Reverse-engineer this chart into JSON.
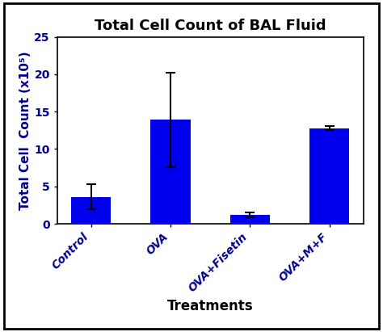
{
  "title": "Total Cell Count of BAL Fluid",
  "xlabel": "Treatments",
  "ylabel": "Total Cell  Count (x10⁵)",
  "categories": [
    "Control",
    "OVA",
    "OVA+Fisetin",
    "OVA+M+F"
  ],
  "values": [
    3.6,
    13.9,
    1.2,
    12.8
  ],
  "errors": [
    1.7,
    6.3,
    0.35,
    0.25
  ],
  "bar_color": "#0000EE",
  "tick_label_color": "#00008B",
  "axis_label_color": "#000000",
  "ytick_label_color": "#00008B",
  "title_color": "#000000",
  "background_color": "#ffffff",
  "ylim": [
    0,
    25
  ],
  "yticks": [
    0,
    5,
    10,
    15,
    20,
    25
  ],
  "bar_width": 0.5,
  "title_fontsize": 13,
  "axis_label_fontsize": 12,
  "tick_label_fontsize": 10,
  "ylabel_fontsize": 11
}
